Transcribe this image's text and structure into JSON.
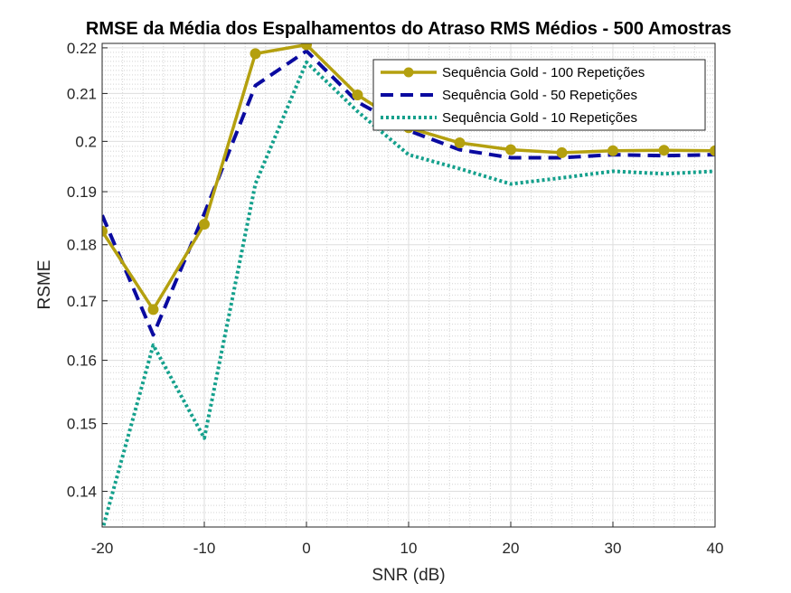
{
  "chart_data": {
    "type": "line",
    "title": "RMSE da Média dos Espalhamentos do Atraso RMS Médios - 500 Amostras",
    "xlabel": "SNR (dB)",
    "ylabel": "RSME",
    "xlim": [
      -20,
      40
    ],
    "ylim": [
      0.135,
      0.221
    ],
    "yscale": "log",
    "grid": true,
    "minor_grid": true,
    "legend_position": "top-right",
    "x_ticks": [
      "-20",
      "-10",
      "0",
      "10",
      "20",
      "30",
      "40"
    ],
    "y_ticks": [
      "0.14",
      "0.15",
      "0.16",
      "0.17",
      "0.18",
      "0.19",
      "0.2",
      "0.21",
      "0.22"
    ],
    "x": [
      -20,
      -15,
      -10,
      -5,
      0,
      5,
      10,
      15,
      20,
      25,
      30,
      35,
      40
    ],
    "series": [
      {
        "name": "Sequência Gold - 100 Repetições",
        "color": "#b4a00f",
        "style": "solid-markers",
        "values": [
          0.1825,
          0.1685,
          0.1838,
          0.2187,
          0.2207,
          0.2097,
          0.2028,
          0.1997,
          0.1983,
          0.1977,
          0.1981,
          0.1982,
          0.1981
        ]
      },
      {
        "name": "Sequência Gold - 50 Repetições",
        "color": "#0a0aa0",
        "style": "dashed",
        "values": [
          0.1855,
          0.1642,
          0.1858,
          0.2117,
          0.2193,
          0.2082,
          0.2022,
          0.1983,
          0.1967,
          0.1967,
          0.1973,
          0.1971,
          0.1973
        ]
      },
      {
        "name": "Sequência Gold - 10 Repetições",
        "color": "#14a08c",
        "style": "dotted",
        "values": [
          0.1345,
          0.1625,
          0.1478,
          0.1915,
          0.2168,
          0.2062,
          0.1973,
          0.1945,
          0.1915,
          0.1927,
          0.194,
          0.1935,
          0.194
        ]
      }
    ]
  }
}
